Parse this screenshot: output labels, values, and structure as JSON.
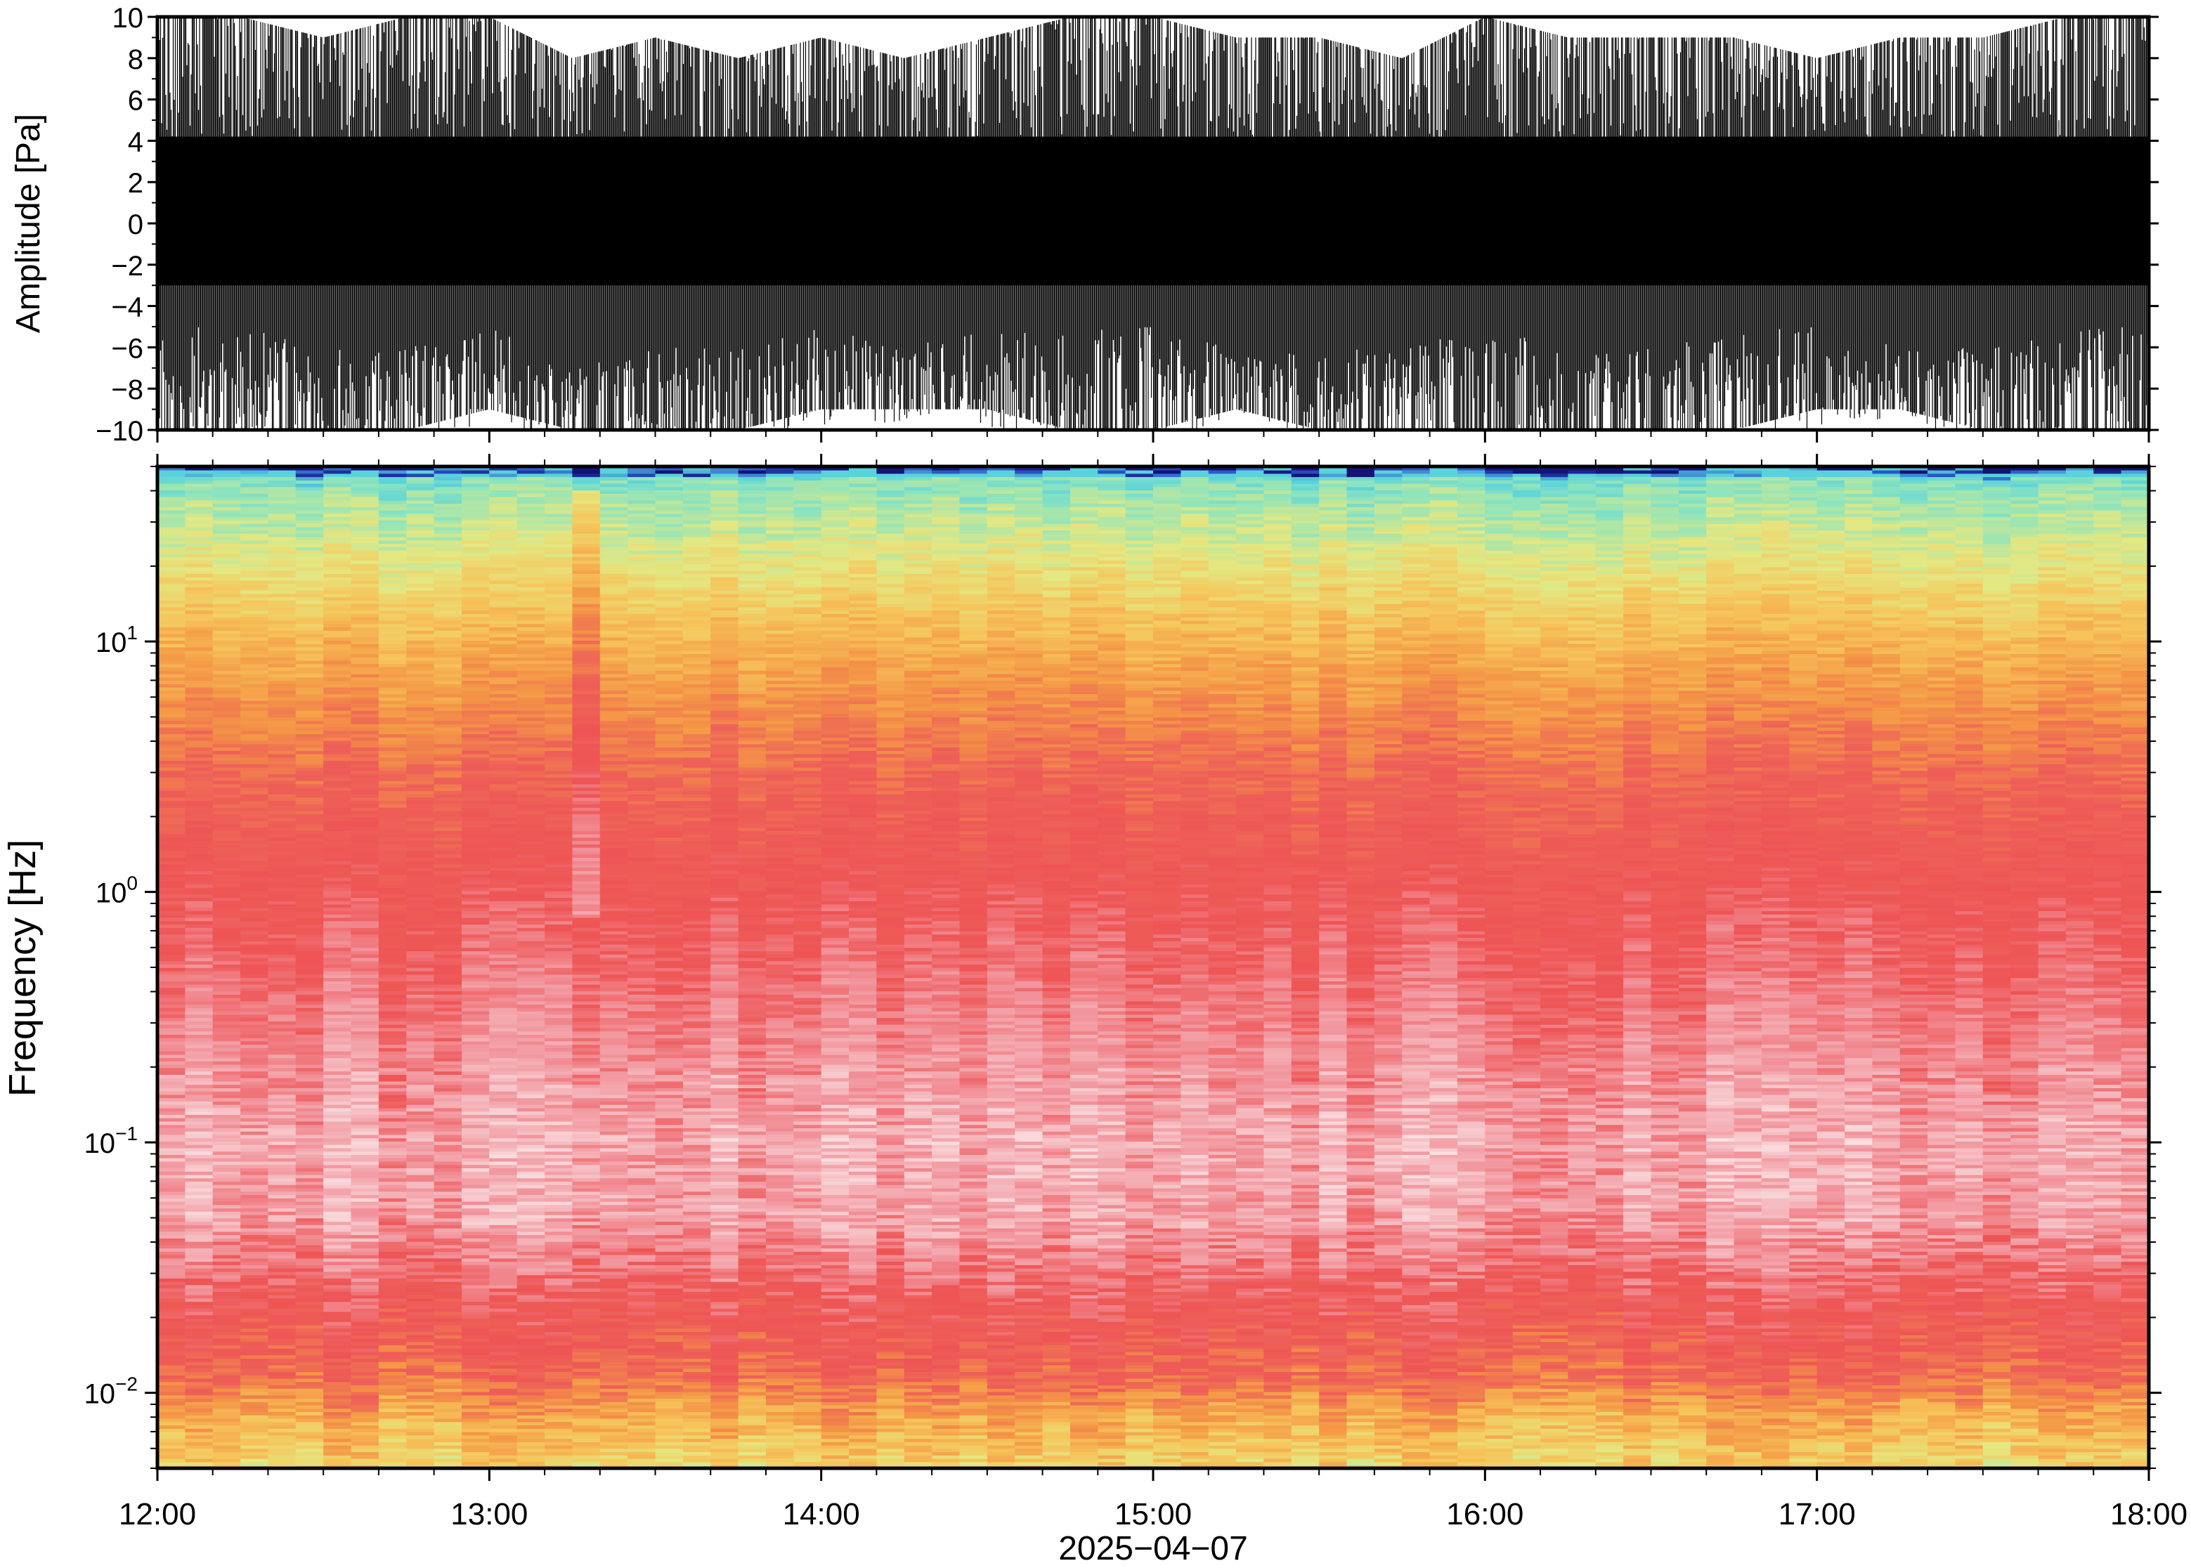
{
  "chart_data": [
    {
      "type": "line",
      "panel": "waveform",
      "ylabel": "Amplitude [Pa]",
      "ylim": [
        -10,
        10
      ],
      "yticks": [
        -10,
        -8,
        -6,
        -4,
        -2,
        0,
        2,
        4,
        6,
        8,
        10
      ],
      "xlim": [
        "12:00",
        "18:00"
      ],
      "series": [
        {
          "time_hours": [
            12.0,
            12.25,
            12.5,
            12.75,
            13.0,
            13.25,
            13.5,
            13.75,
            14.0,
            14.25,
            14.5,
            14.75,
            15.0,
            15.25,
            15.5,
            15.75,
            16.0,
            16.25,
            16.5,
            16.75,
            17.0,
            17.25,
            17.5,
            17.75,
            18.0
          ],
          "upper_envelope_pa": [
            10,
            10,
            9,
            10,
            10,
            8,
            9,
            8,
            9,
            8,
            9,
            10,
            10,
            9,
            9,
            8,
            10,
            9,
            9,
            9,
            8,
            9,
            9,
            10,
            10
          ],
          "lower_envelope_pa": [
            -10,
            -10,
            -10,
            -10,
            -9,
            -10,
            -10,
            -10,
            -9,
            -9,
            -9,
            -10,
            -10,
            -9,
            -10,
            -10,
            -10,
            -10,
            -10,
            -10,
            -9,
            -9,
            -10,
            -10,
            -10
          ],
          "typical_lower_edge_pa": [
            -5,
            -5,
            -6,
            -6,
            -5,
            -7,
            -6,
            -6,
            -5,
            -6,
            -5,
            -5,
            -5,
            -6,
            -6,
            -6,
            -5,
            -6,
            -6,
            -5,
            -5,
            -6,
            -6,
            -5,
            -5
          ]
        }
      ],
      "grid": false
    },
    {
      "type": "heatmap",
      "panel": "spectrogram",
      "ylabel": "Frequency [Hz]",
      "xlabel": "2025−04−07",
      "yscale": "log",
      "ylim": [
        0.005,
        50
      ],
      "ytick_labels": [
        {
          "base": "10",
          "exp": "−2",
          "value": 0.01
        },
        {
          "base": "10",
          "exp": "−1",
          "value": 0.1
        },
        {
          "base": "10",
          "exp": "0",
          "value": 1
        },
        {
          "base": "10",
          "exp": "1",
          "value": 10
        }
      ],
      "xtick_labels": [
        "12:00",
        "13:00",
        "14:00",
        "15:00",
        "16:00",
        "17:00",
        "18:00"
      ],
      "colormap": "blue-cyan-green-yellow-orange-red-pink",
      "dominant_color_by_band": [
        {
          "band_hz": [
            0.005,
            0.012
          ],
          "color": "#f6d46a"
        },
        {
          "band_hz": [
            0.012,
            0.035
          ],
          "color": "#ee5a5a"
        },
        {
          "band_hz": [
            0.035,
            0.3
          ],
          "color": "#f6b3b8"
        },
        {
          "band_hz": [
            0.3,
            3
          ],
          "color": "#ef5c5c"
        },
        {
          "band_hz": [
            3,
            10
          ],
          "color": "#f5a04a"
        },
        {
          "band_hz": [
            10,
            25
          ],
          "color": "#e9e478"
        },
        {
          "band_hz": [
            25,
            45
          ],
          "color": "#8fe3bd"
        },
        {
          "band_hz": [
            45,
            50
          ],
          "color": "#1020a0"
        }
      ],
      "grid": false
    }
  ]
}
